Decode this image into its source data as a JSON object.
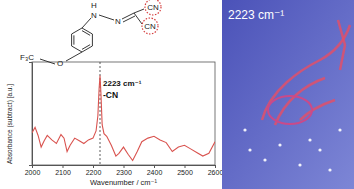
{
  "chart_data": {
    "type": "line",
    "x_label": "Wavenumber / cm⁻¹",
    "y_label": "Absorbance (subtract) [a.u.]",
    "x": [
      2000,
      2010,
      2020,
      2030,
      2040,
      2050,
      2065,
      2080,
      2095,
      2105,
      2115,
      2125,
      2140,
      2155,
      2170,
      2185,
      2200,
      2210,
      2216,
      2220,
      2223,
      2226,
      2230,
      2236,
      2245,
      2260,
      2275,
      2285,
      2300,
      2315,
      2330,
      2345,
      2360,
      2380,
      2400,
      2420,
      2440,
      2460,
      2480,
      2500,
      2520,
      2540,
      2560,
      2580,
      2600
    ],
    "values": [
      0.36,
      0.42,
      0.33,
      0.2,
      0.27,
      0.33,
      0.28,
      0.24,
      0.34,
      0.3,
      0.15,
      0.22,
      0.3,
      0.27,
      0.24,
      0.28,
      0.3,
      0.38,
      0.55,
      0.85,
      1.0,
      0.8,
      0.45,
      0.35,
      0.32,
      0.22,
      0.1,
      0.13,
      0.2,
      0.12,
      0.05,
      0.15,
      0.26,
      0.3,
      0.32,
      0.28,
      0.25,
      0.15,
      0.2,
      0.22,
      0.18,
      0.14,
      0.1,
      0.13,
      0.26
    ],
    "color": "#d9534f",
    "xlim": [
      2000,
      2600
    ],
    "xticks": [
      2000,
      2100,
      2200,
      2300,
      2400,
      2500,
      2600
    ],
    "ylim": [
      0,
      1.15
    ],
    "yticks": [],
    "tick_labels": "x",
    "grid": false,
    "annotations": [
      {
        "x": 2223,
        "texts": [
          "2223 cm⁻¹",
          "-CN"
        ]
      }
    ]
  },
  "structure": {
    "labels": [
      "H",
      "N",
      "N",
      "CN",
      "CN",
      "O",
      "F₃C"
    ]
  },
  "image_panel": {
    "label": "2223 cm⁻¹"
  }
}
